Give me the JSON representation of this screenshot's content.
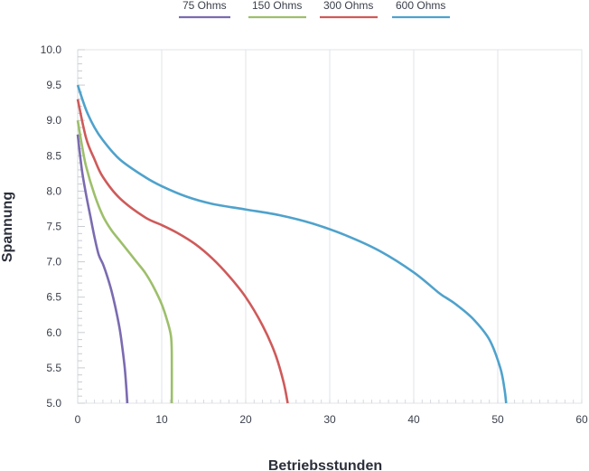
{
  "chart_data": {
    "type": "line",
    "xlabel": "Betriebsstunden",
    "ylabel": "Spannung",
    "xlim": [
      0,
      60
    ],
    "ylim": [
      5.0,
      10.0
    ],
    "x_ticks": [
      "0",
      "10",
      "20",
      "30",
      "40",
      "50",
      "60"
    ],
    "y_ticks": [
      "5.0",
      "5.5",
      "6.0",
      "6.5",
      "7.0",
      "7.5",
      "8.0",
      "8.5",
      "9.0",
      "9.5",
      "10.0"
    ],
    "grid": "vertical",
    "legend_position": "top",
    "series": [
      {
        "name": "75 Ohms",
        "color": "#7b6bb0",
        "points": [
          [
            0,
            8.8
          ],
          [
            0.5,
            8.3
          ],
          [
            1,
            7.95
          ],
          [
            1.5,
            7.65
          ],
          [
            2,
            7.35
          ],
          [
            2.5,
            7.1
          ],
          [
            3,
            6.97
          ],
          [
            3.5,
            6.8
          ],
          [
            4,
            6.6
          ],
          [
            4.5,
            6.35
          ],
          [
            5,
            6.05
          ],
          [
            5.3,
            5.8
          ],
          [
            5.6,
            5.5
          ],
          [
            5.8,
            5.2
          ],
          [
            5.9,
            5.0
          ]
        ]
      },
      {
        "name": "150 Ohms",
        "color": "#9dbf6a",
        "points": [
          [
            0,
            9.0
          ],
          [
            0.5,
            8.65
          ],
          [
            1,
            8.35
          ],
          [
            2,
            7.95
          ],
          [
            3,
            7.65
          ],
          [
            4,
            7.45
          ],
          [
            5,
            7.3
          ],
          [
            6,
            7.15
          ],
          [
            7,
            7.0
          ],
          [
            8,
            6.85
          ],
          [
            9,
            6.65
          ],
          [
            10,
            6.4
          ],
          [
            10.7,
            6.15
          ],
          [
            11.1,
            5.95
          ],
          [
            11.2,
            5.7
          ],
          [
            11.2,
            5.0
          ]
        ]
      },
      {
        "name": "300 Ohms",
        "color": "#cf5a5a",
        "points": [
          [
            0,
            9.3
          ],
          [
            1,
            8.75
          ],
          [
            2,
            8.45
          ],
          [
            3,
            8.2
          ],
          [
            5,
            7.9
          ],
          [
            8,
            7.63
          ],
          [
            10,
            7.52
          ],
          [
            12,
            7.4
          ],
          [
            14,
            7.25
          ],
          [
            16,
            7.05
          ],
          [
            18,
            6.8
          ],
          [
            20,
            6.5
          ],
          [
            22,
            6.1
          ],
          [
            23.5,
            5.7
          ],
          [
            24.5,
            5.3
          ],
          [
            25,
            5.0
          ]
        ]
      },
      {
        "name": "600 Ohms",
        "color": "#4fa2cc",
        "points": [
          [
            0,
            9.5
          ],
          [
            1,
            9.15
          ],
          [
            2,
            8.9
          ],
          [
            3,
            8.72
          ],
          [
            5,
            8.45
          ],
          [
            8,
            8.2
          ],
          [
            10,
            8.07
          ],
          [
            13,
            7.92
          ],
          [
            16,
            7.82
          ],
          [
            20,
            7.74
          ],
          [
            24,
            7.66
          ],
          [
            28,
            7.54
          ],
          [
            32,
            7.37
          ],
          [
            36,
            7.15
          ],
          [
            40,
            6.85
          ],
          [
            43,
            6.56
          ],
          [
            44,
            6.48
          ],
          [
            45,
            6.4
          ],
          [
            47,
            6.2
          ],
          [
            49,
            5.9
          ],
          [
            50.3,
            5.5
          ],
          [
            50.8,
            5.2
          ],
          [
            51,
            5.0
          ]
        ]
      }
    ]
  }
}
